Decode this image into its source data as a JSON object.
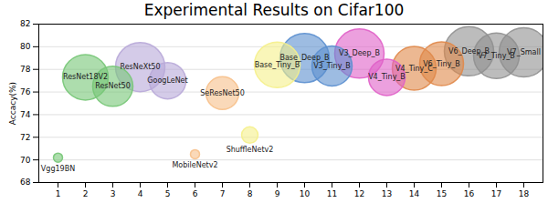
{
  "chart_data": {
    "type": "scatter",
    "title": "Experimental Results on Cifar100",
    "y_label": "Accacy(%)",
    "x": [
      1,
      2,
      3,
      4,
      5,
      6,
      7,
      8,
      9,
      10,
      11,
      12,
      13,
      14,
      15,
      16,
      17,
      18
    ],
    "values": [
      70.2,
      77.3,
      76.5,
      78.2,
      77.0,
      70.5,
      75.9,
      72.2,
      78.4,
      79.0,
      78.3,
      79.4,
      77.3,
      78.1,
      78.5,
      79.6,
      79.2,
      79.5
    ],
    "sizes": [
      5,
      25,
      22,
      27,
      20,
      5,
      18,
      9,
      25,
      27,
      22,
      27,
      20,
      24,
      24,
      27,
      25,
      27
    ],
    "labels": [
      "Vgg19BN",
      "ResNet18V2",
      "ResNet50",
      "ResNeXt50",
      "GoogLeNet",
      "MobileNetv2",
      "SeResNet50",
      "ShuffleNetv2",
      "Base_Tiny_B",
      "Base_Deep_B",
      "V3_Tiny_B",
      "V3_Deep_B",
      "V4_Tiny_B",
      "V4_Tiny_C",
      "V6_Tiny_B",
      "V6_Deep_B",
      "V7_Tiny_B",
      "V7_Small"
    ],
    "colors": [
      "#77c777",
      "#77c777",
      "#77c777",
      "#b8a8d8",
      "#b8a8d8",
      "#f7c08a",
      "#f7c08a",
      "#f5f08a",
      "#f5f08a",
      "#5b8fcf",
      "#5b8fcf",
      "#e060c8",
      "#e060c8",
      "#e0884a",
      "#e0884a",
      "#909090",
      "#909090",
      "#909090"
    ],
    "xlim": [
      0.3,
      18.7
    ],
    "xticks": [
      1,
      2,
      3,
      4,
      5,
      6,
      7,
      8,
      9,
      10,
      11,
      12,
      13,
      14,
      15,
      16,
      17,
      18
    ],
    "ylim": [
      68,
      82
    ],
    "yticks": [
      68,
      70,
      72,
      74,
      76,
      78,
      80,
      82
    ],
    "grid": true
  }
}
